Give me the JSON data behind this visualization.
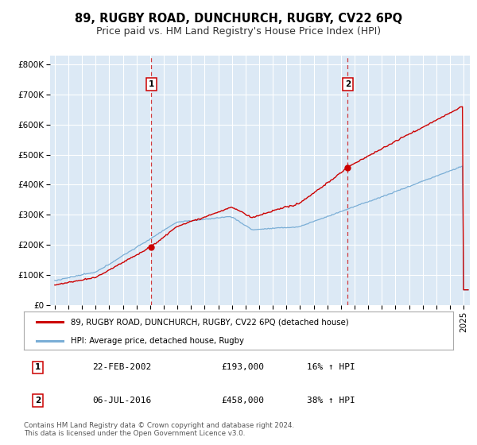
{
  "title": "89, RUGBY ROAD, DUNCHURCH, RUGBY, CV22 6PQ",
  "subtitle": "Price paid vs. HM Land Registry's House Price Index (HPI)",
  "bg_color": "#ffffff",
  "plot_bg_color": "#dce9f5",
  "grid_color": "#ffffff",
  "red_line_color": "#cc0000",
  "blue_line_color": "#7aaed6",
  "marker1_value": 193000,
  "marker2_value": 458000,
  "marker1_date_str": "22-FEB-2002",
  "marker2_date_str": "06-JUL-2016",
  "marker1_hpi": "16% ↑ HPI",
  "marker2_hpi": "38% ↑ HPI",
  "marker1_price_str": "£193,000",
  "marker2_price_str": "£458,000",
  "ylabel_ticks": [
    "£0",
    "£100K",
    "£200K",
    "£300K",
    "£400K",
    "£500K",
    "£600K",
    "£700K",
    "£800K"
  ],
  "ylabel_values": [
    0,
    100000,
    200000,
    300000,
    400000,
    500000,
    600000,
    700000,
    800000
  ],
  "xlim_start": 1994.7,
  "xlim_end": 2025.5,
  "ylim_min": 0,
  "ylim_max": 830000,
  "legend_label_red": "89, RUGBY ROAD, DUNCHURCH, RUGBY, CV22 6PQ (detached house)",
  "legend_label_blue": "HPI: Average price, detached house, Rugby",
  "footnote": "Contains HM Land Registry data © Crown copyright and database right 2024.\nThis data is licensed under the Open Government Licence v3.0.",
  "title_fontsize": 10.5,
  "subtitle_fontsize": 9,
  "axis_fontsize": 7.5,
  "marker1_year": 2002,
  "marker1_month": 2,
  "marker2_year": 2016,
  "marker2_month": 7
}
